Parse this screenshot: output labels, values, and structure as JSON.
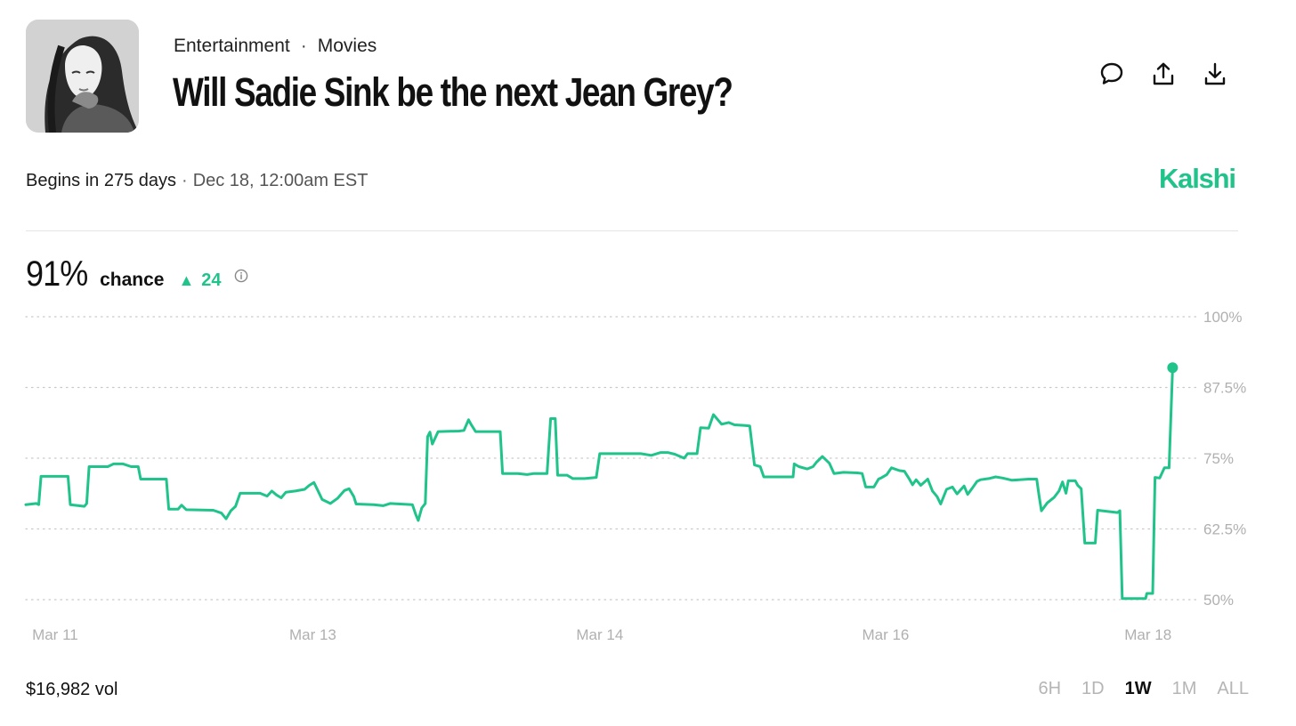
{
  "header": {
    "category": "Entertainment",
    "subcategory": "Movies",
    "title": "Will Sadie Sink be the next Jean Grey?",
    "actions": [
      {
        "icon": "comment-icon"
      },
      {
        "icon": "share-icon"
      },
      {
        "icon": "download-icon"
      }
    ]
  },
  "schedule": {
    "begins": "Begins in 275 days",
    "separator": "·",
    "date": "Dec 18, 12:00am EST"
  },
  "brand": {
    "name": "Kalshi",
    "color": "#20c48b"
  },
  "summary": {
    "chance_value": "91%",
    "chance_label": "chance",
    "change_icon": "up-triangle-icon",
    "change_value": "24",
    "info_icon": "info-icon"
  },
  "footer": {
    "volume": "$16,982 vol",
    "ranges": [
      "6H",
      "1D",
      "1W",
      "1M",
      "ALL"
    ],
    "active_range": "1W"
  },
  "chart_data": {
    "type": "line",
    "color": "#20c48b",
    "ylim": [
      50,
      100
    ],
    "y_ticks": [
      100,
      87.5,
      75,
      62.5,
      50
    ],
    "y_tick_labels": [
      "100%",
      "87.5%",
      "75%",
      "62.5%",
      "50%"
    ],
    "xlim": [
      0,
      100
    ],
    "x_ticks": [
      {
        "x": 2.5,
        "label": "Mar 11"
      },
      {
        "x": 24.5,
        "label": "Mar 13"
      },
      {
        "x": 49,
        "label": "Mar 14"
      },
      {
        "x": 73.4,
        "label": "Mar 16"
      },
      {
        "x": 95.8,
        "label": "Mar 18"
      }
    ],
    "grid": true,
    "series": [
      {
        "points": [
          [
            0,
            66.8
          ],
          [
            0.9,
            67
          ],
          [
            1.1,
            66.8
          ],
          [
            1.3,
            71.8
          ],
          [
            3.6,
            71.8
          ],
          [
            3.8,
            66.8
          ],
          [
            5,
            66.5
          ],
          [
            5.2,
            67
          ],
          [
            5.4,
            73.5
          ],
          [
            7,
            73.5
          ],
          [
            7.5,
            74
          ],
          [
            8.3,
            74
          ],
          [
            9,
            73.5
          ],
          [
            9.6,
            73.5
          ],
          [
            9.8,
            71.3
          ],
          [
            12,
            71.3
          ],
          [
            12.2,
            66
          ],
          [
            13,
            66
          ],
          [
            13.3,
            66.7
          ],
          [
            13.7,
            65.9
          ],
          [
            16,
            65.8
          ],
          [
            16.7,
            65.3
          ],
          [
            17.1,
            64.3
          ],
          [
            17.5,
            65.7
          ],
          [
            17.9,
            66.5
          ],
          [
            18.3,
            68.8
          ],
          [
            20,
            68.8
          ],
          [
            20.6,
            68.3
          ],
          [
            21,
            69.2
          ],
          [
            21.4,
            68.5
          ],
          [
            21.8,
            68
          ],
          [
            22.2,
            69
          ],
          [
            23,
            69.2
          ],
          [
            23.8,
            69.5
          ],
          [
            24.2,
            70.2
          ],
          [
            24.6,
            70.7
          ],
          [
            25,
            69
          ],
          [
            25.3,
            67.7
          ],
          [
            26,
            67
          ],
          [
            26.6,
            67.9
          ],
          [
            27.2,
            69.3
          ],
          [
            27.6,
            69.6
          ],
          [
            28,
            68.2
          ],
          [
            28.2,
            66.9
          ],
          [
            29.7,
            66.8
          ],
          [
            30.5,
            66.6
          ],
          [
            31.1,
            67
          ],
          [
            33,
            66.8
          ],
          [
            33.3,
            65
          ],
          [
            33.5,
            64
          ],
          [
            33.8,
            66.2
          ],
          [
            34.1,
            67
          ],
          [
            34.3,
            78.8
          ],
          [
            34.5,
            79.6
          ],
          [
            34.7,
            77.5
          ],
          [
            35.2,
            79.7
          ],
          [
            37,
            79.8
          ],
          [
            37.4,
            79.9
          ],
          [
            37.8,
            81.8
          ],
          [
            38,
            81
          ],
          [
            38.4,
            79.7
          ],
          [
            40.5,
            79.7
          ],
          [
            40.7,
            72.3
          ],
          [
            42,
            72.3
          ],
          [
            42.8,
            72.1
          ],
          [
            43.4,
            72.3
          ],
          [
            44.5,
            72.3
          ],
          [
            44.8,
            82
          ],
          [
            45.2,
            82
          ],
          [
            45.4,
            72
          ],
          [
            46.2,
            72
          ],
          [
            46.7,
            71.4
          ],
          [
            47.7,
            71.4
          ],
          [
            48.2,
            71.5
          ],
          [
            48.7,
            71.6
          ],
          [
            49,
            75.8
          ],
          [
            52.5,
            75.8
          ],
          [
            53.4,
            75.5
          ],
          [
            54.2,
            76
          ],
          [
            54.8,
            76
          ],
          [
            55.4,
            75.7
          ],
          [
            56.2,
            75
          ],
          [
            56.5,
            75.8
          ],
          [
            57.3,
            75.8
          ],
          [
            57.6,
            80.4
          ],
          [
            58.3,
            80.3
          ],
          [
            58.7,
            82.7
          ],
          [
            59.4,
            81
          ],
          [
            60,
            81.3
          ],
          [
            60.5,
            80.9
          ],
          [
            61.3,
            80.8
          ],
          [
            61.8,
            80.7
          ],
          [
            62.2,
            73.8
          ],
          [
            62.7,
            73.5
          ],
          [
            63,
            71.7
          ],
          [
            65.5,
            71.7
          ],
          [
            65.6,
            74
          ],
          [
            66,
            73.5
          ],
          [
            66.7,
            73.1
          ],
          [
            67.2,
            73.5
          ],
          [
            67.5,
            74.3
          ],
          [
            68,
            75.3
          ],
          [
            68.6,
            74.1
          ],
          [
            69,
            72.3
          ],
          [
            69.8,
            72.5
          ],
          [
            71,
            72.4
          ],
          [
            71.4,
            72.3
          ],
          [
            71.7,
            69.9
          ],
          [
            72.4,
            69.9
          ],
          [
            72.8,
            71.3
          ],
          [
            73,
            71.5
          ],
          [
            73.5,
            72.1
          ],
          [
            73.9,
            73.3
          ],
          [
            74.6,
            72.8
          ],
          [
            75,
            72.7
          ],
          [
            75.4,
            71.4
          ],
          [
            75.7,
            70.3
          ],
          [
            76,
            71.2
          ],
          [
            76.4,
            70.2
          ],
          [
            77,
            71.3
          ],
          [
            77.4,
            69.2
          ],
          [
            77.8,
            68.2
          ],
          [
            78.1,
            66.9
          ],
          [
            78.6,
            69.5
          ],
          [
            79.1,
            69.9
          ],
          [
            79.5,
            68.7
          ],
          [
            80.1,
            70.1
          ],
          [
            80.4,
            68.6
          ],
          [
            80.8,
            69.7
          ],
          [
            81.2,
            70.9
          ],
          [
            81.5,
            71.2
          ],
          [
            82.2,
            71.4
          ],
          [
            82.8,
            71.7
          ],
          [
            83.4,
            71.5
          ],
          [
            84.2,
            71.1
          ],
          [
            85.6,
            71.3
          ],
          [
            86.3,
            71.3
          ],
          [
            86.5,
            68.4
          ],
          [
            86.7,
            65.7
          ],
          [
            87.2,
            67.1
          ],
          [
            87.8,
            68.1
          ],
          [
            88.2,
            69.2
          ],
          [
            88.5,
            70.8
          ],
          [
            88.8,
            68.8
          ],
          [
            89,
            71
          ],
          [
            89.6,
            71
          ],
          [
            89.8,
            70.2
          ],
          [
            90.1,
            69.6
          ],
          [
            90.4,
            60
          ],
          [
            91.3,
            60
          ],
          [
            91.5,
            65.8
          ],
          [
            92.3,
            65.6
          ],
          [
            93.2,
            65.4
          ],
          [
            93.4,
            65.7
          ],
          [
            93.6,
            50.2
          ],
          [
            95.6,
            50.2
          ],
          [
            95.7,
            51.1
          ],
          [
            96.2,
            51.1
          ],
          [
            96.4,
            71.6
          ],
          [
            96.8,
            71.5
          ],
          [
            97.2,
            73.3
          ],
          [
            97.6,
            73.3
          ],
          [
            97.9,
            91
          ]
        ]
      }
    ]
  }
}
